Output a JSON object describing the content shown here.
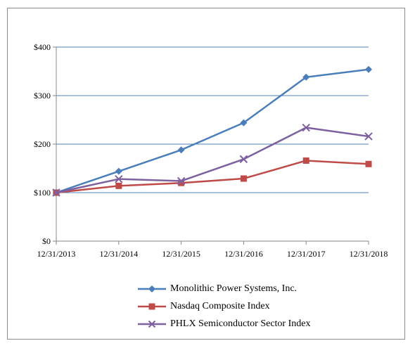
{
  "chart_data": {
    "type": "line",
    "categories": [
      "12/31/2013",
      "12/31/2014",
      "12/31/2015",
      "12/31/2016",
      "12/31/2017",
      "12/31/2018"
    ],
    "y_ticks": [
      "$0",
      "$100",
      "$200",
      "$300",
      "$400"
    ],
    "ylim": [
      0,
      400
    ],
    "grid": "horizontal",
    "legend_position": "bottom",
    "series": [
      {
        "name": "Monolithic Power Systems, Inc.",
        "color": "#4a7ebb",
        "marker": "diamond",
        "values": [
          100,
          144,
          188,
          244,
          338,
          354
        ]
      },
      {
        "name": "Nasdaq Composite Index",
        "color": "#be4b48",
        "marker": "square",
        "values": [
          100,
          114,
          120,
          129,
          166,
          159
        ]
      },
      {
        "name": "PHLX Semiconductor Sector Index",
        "color": "#7d60a0",
        "marker": "x",
        "values": [
          100,
          128,
          124,
          169,
          234,
          216
        ]
      }
    ]
  }
}
